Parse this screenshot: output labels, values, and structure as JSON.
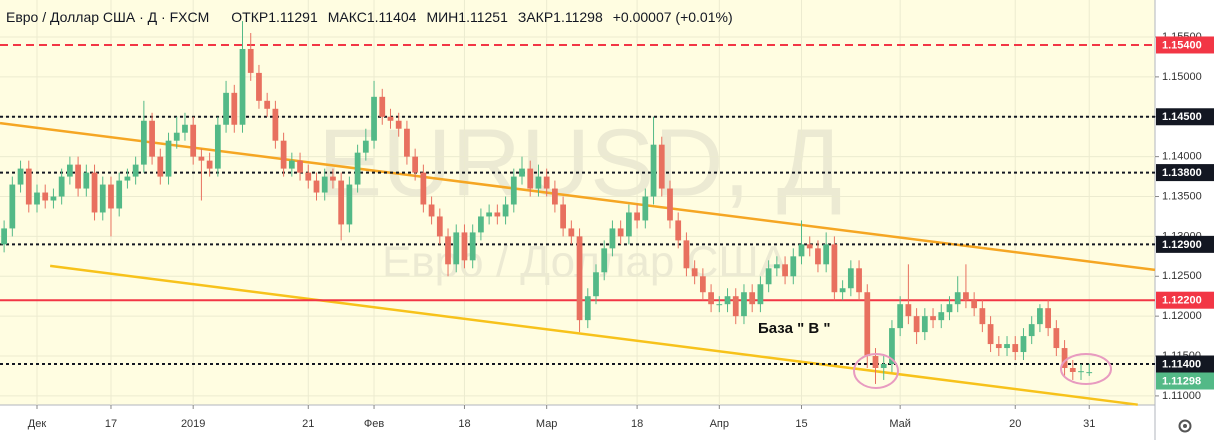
{
  "chart_data": {
    "type": "candlestick",
    "title": "Евро / Доллар США · Д · FXCM",
    "legend": [
      {
        "label": "ОТКР",
        "value": 1.11291
      },
      {
        "label": "МАКС",
        "value": 1.11404
      },
      {
        "label": "МИН",
        "value": 1.11251
      },
      {
        "label": "ЗАКР",
        "value": 1.11298
      }
    ],
    "change": "+0.00007 (+0.01%)",
    "watermark": "EURUSD, Д",
    "watermark_subtitle": "Евро / Доллар США",
    "annotation": "База  \" В \"",
    "up_color": "#53b987",
    "down_color": "#e8705f",
    "open": [
      1.129,
      1.131,
      1.1365,
      1.1385,
      1.134,
      1.1355,
      1.1345,
      1.135,
      1.1375,
      1.139,
      1.136,
      1.138,
      1.133,
      1.1365,
      1.1335,
      1.137,
      1.1375,
      1.139,
      1.1445,
      1.14,
      1.1375,
      1.142,
      1.143,
      1.144,
      1.14,
      1.1395,
      1.1385,
      1.144,
      1.148,
      1.144,
      1.1535,
      1.1505,
      1.147,
      1.146,
      1.142,
      1.1385,
      1.1395,
      1.138,
      1.137,
      1.1355,
      1.1375,
      1.137,
      1.1315,
      1.1365,
      1.1405,
      1.142,
      1.1475,
      1.145,
      1.1445,
      1.1435,
      1.14,
      1.138,
      1.134,
      1.1325,
      1.13,
      1.1265,
      1.1305,
      1.127,
      1.1305,
      1.1325,
      1.133,
      1.1325,
      1.134,
      1.1375,
      1.1385,
      1.136,
      1.1375,
      1.136,
      1.134,
      1.131,
      1.13,
      1.1195,
      1.1225,
      1.1255,
      1.1285,
      1.131,
      1.13,
      1.133,
      1.132,
      1.135,
      1.1415,
      1.136,
      1.132,
      1.1295,
      1.126,
      1.125,
      1.123,
      1.1215,
      1.1215,
      1.1225,
      1.12,
      1.123,
      1.1215,
      1.124,
      1.126,
      1.1265,
      1.125,
      1.1275,
      1.129,
      1.1285,
      1.1265,
      1.129,
      1.123,
      1.1235,
      1.126,
      1.123,
      1.115,
      1.1135,
      1.114,
      1.1185,
      1.1215,
      1.12,
      1.118,
      1.12,
      1.1195,
      1.1205,
      1.1215,
      1.123,
      1.122,
      1.121,
      1.119,
      1.1165,
      1.116,
      1.1165,
      1.1155,
      1.1175,
      1.119,
      1.121,
      1.1185,
      1.116,
      1.1135,
      1.113,
      1.11291
    ],
    "high": [
      1.132,
      1.1375,
      1.1395,
      1.1395,
      1.1365,
      1.1365,
      1.136,
      1.1385,
      1.14,
      1.14,
      1.139,
      1.139,
      1.1375,
      1.1375,
      1.138,
      1.1385,
      1.14,
      1.147,
      1.1455,
      1.141,
      1.143,
      1.145,
      1.1455,
      1.145,
      1.141,
      1.1405,
      1.145,
      1.1495,
      1.149,
      1.157,
      1.1555,
      1.1515,
      1.148,
      1.147,
      1.143,
      1.1405,
      1.1405,
      1.139,
      1.138,
      1.1385,
      1.1385,
      1.138,
      1.1375,
      1.1415,
      1.1435,
      1.1495,
      1.1485,
      1.146,
      1.1455,
      1.1445,
      1.141,
      1.139,
      1.135,
      1.1335,
      1.131,
      1.1315,
      1.1315,
      1.1315,
      1.1335,
      1.134,
      1.134,
      1.135,
      1.1385,
      1.14,
      1.1395,
      1.139,
      1.1385,
      1.137,
      1.135,
      1.132,
      1.131,
      1.1235,
      1.1265,
      1.1295,
      1.132,
      1.132,
      1.134,
      1.134,
      1.136,
      1.145,
      1.1425,
      1.137,
      1.133,
      1.1305,
      1.127,
      1.126,
      1.124,
      1.1225,
      1.1235,
      1.1235,
      1.124,
      1.124,
      1.125,
      1.127,
      1.1275,
      1.1275,
      1.1285,
      1.132,
      1.13,
      1.1295,
      1.1305,
      1.13,
      1.1245,
      1.127,
      1.127,
      1.124,
      1.116,
      1.115,
      1.1195,
      1.1225,
      1.1265,
      1.121,
      1.121,
      1.121,
      1.1215,
      1.1225,
      1.125,
      1.1265,
      1.123,
      1.122,
      1.12,
      1.1175,
      1.1175,
      1.1175,
      1.1185,
      1.12,
      1.1215,
      1.122,
      1.1195,
      1.117,
      1.1145,
      1.114,
      1.11404
    ],
    "low": [
      1.128,
      1.13,
      1.1355,
      1.133,
      1.133,
      1.1335,
      1.1335,
      1.134,
      1.1365,
      1.135,
      1.135,
      1.132,
      1.132,
      1.13,
      1.1325,
      1.136,
      1.1365,
      1.138,
      1.139,
      1.1365,
      1.1365,
      1.141,
      1.142,
      1.139,
      1.1345,
      1.1375,
      1.1375,
      1.143,
      1.143,
      1.143,
      1.1495,
      1.146,
      1.145,
      1.141,
      1.1375,
      1.1375,
      1.137,
      1.136,
      1.1345,
      1.1345,
      1.136,
      1.1295,
      1.1305,
      1.1355,
      1.1395,
      1.141,
      1.144,
      1.1435,
      1.1425,
      1.139,
      1.137,
      1.133,
      1.1315,
      1.129,
      1.125,
      1.1255,
      1.126,
      1.126,
      1.1295,
      1.1315,
      1.1315,
      1.1315,
      1.133,
      1.1365,
      1.135,
      1.135,
      1.135,
      1.133,
      1.13,
      1.129,
      1.118,
      1.1185,
      1.1215,
      1.1245,
      1.1275,
      1.129,
      1.129,
      1.131,
      1.131,
      1.134,
      1.135,
      1.131,
      1.1285,
      1.125,
      1.124,
      1.122,
      1.1205,
      1.1205,
      1.1205,
      1.119,
      1.119,
      1.1205,
      1.1205,
      1.123,
      1.125,
      1.124,
      1.124,
      1.1265,
      1.1275,
      1.1255,
      1.1255,
      1.122,
      1.122,
      1.1225,
      1.122,
      1.1135,
      1.1115,
      1.112,
      1.113,
      1.1175,
      1.119,
      1.1165,
      1.117,
      1.1185,
      1.1185,
      1.1195,
      1.1205,
      1.121,
      1.12,
      1.118,
      1.1155,
      1.115,
      1.115,
      1.1145,
      1.1145,
      1.1165,
      1.118,
      1.1175,
      1.115,
      1.1125,
      1.112,
      1.112,
      1.11251
    ],
    "close": [
      1.131,
      1.1365,
      1.1385,
      1.134,
      1.1355,
      1.1345,
      1.135,
      1.1375,
      1.139,
      1.136,
      1.138,
      1.133,
      1.1365,
      1.1335,
      1.137,
      1.1375,
      1.139,
      1.1445,
      1.14,
      1.1375,
      1.142,
      1.143,
      1.144,
      1.14,
      1.1395,
      1.1385,
      1.144,
      1.148,
      1.144,
      1.1535,
      1.1505,
      1.147,
      1.146,
      1.142,
      1.1385,
      1.1395,
      1.138,
      1.137,
      1.1355,
      1.1375,
      1.137,
      1.1315,
      1.1365,
      1.1405,
      1.142,
      1.1475,
      1.145,
      1.1445,
      1.1435,
      1.14,
      1.138,
      1.134,
      1.1325,
      1.13,
      1.1265,
      1.1305,
      1.127,
      1.1305,
      1.1325,
      1.133,
      1.1325,
      1.134,
      1.1375,
      1.1385,
      1.136,
      1.1375,
      1.136,
      1.134,
      1.131,
      1.13,
      1.1195,
      1.1225,
      1.1255,
      1.1285,
      1.131,
      1.13,
      1.133,
      1.132,
      1.135,
      1.1415,
      1.136,
      1.132,
      1.1295,
      1.126,
      1.125,
      1.123,
      1.1215,
      1.1215,
      1.1225,
      1.12,
      1.123,
      1.1215,
      1.124,
      1.126,
      1.1265,
      1.125,
      1.1275,
      1.129,
      1.1285,
      1.1265,
      1.129,
      1.123,
      1.1235,
      1.126,
      1.123,
      1.115,
      1.1135,
      1.114,
      1.1185,
      1.1215,
      1.12,
      1.118,
      1.12,
      1.1195,
      1.1205,
      1.1215,
      1.123,
      1.122,
      1.121,
      1.119,
      1.1165,
      1.116,
      1.1165,
      1.1155,
      1.1175,
      1.119,
      1.121,
      1.1185,
      1.116,
      1.1135,
      1.113,
      1.1131,
      1.11298
    ],
    "xlim": [
      -0.5,
      140
    ],
    "xticks": [
      {
        "value": 4,
        "label": "Дек"
      },
      {
        "value": 13,
        "label": "17"
      },
      {
        "value": 23,
        "label": "2019"
      },
      {
        "value": 37,
        "label": "21"
      },
      {
        "value": 45,
        "label": "Фев"
      },
      {
        "value": 56,
        "label": "18"
      },
      {
        "value": 66,
        "label": "Мар"
      },
      {
        "value": 77,
        "label": "18"
      },
      {
        "value": 87,
        "label": "Апр"
      },
      {
        "value": 97,
        "label": "15"
      },
      {
        "value": 109,
        "label": "Май"
      },
      {
        "value": 123,
        "label": "20"
      },
      {
        "value": 132,
        "label": "31"
      }
    ],
    "ylim": [
      1.10886,
      1.15964
    ],
    "yticks": [
      {
        "value": 1.155,
        "label": "1.15500"
      },
      {
        "value": 1.15,
        "label": "1.15000"
      },
      {
        "value": 1.145,
        "label": "1.14500"
      },
      {
        "value": 1.14,
        "label": "1.14000"
      },
      {
        "value": 1.135,
        "label": "1.13500"
      },
      {
        "value": 1.13,
        "label": "1.13000"
      },
      {
        "value": 1.125,
        "label": "1.12500"
      },
      {
        "value": 1.12,
        "label": "1.12000"
      },
      {
        "value": 1.115,
        "label": "1.11500"
      },
      {
        "value": 1.11,
        "label": "1.11000"
      }
    ],
    "grid": true,
    "levels": [
      {
        "value": 1.154,
        "label": "1.15400",
        "color": "#f23645",
        "style": "dashed"
      },
      {
        "value": 1.145,
        "label": "1.14500",
        "color": "#131722",
        "style": "dotted"
      },
      {
        "value": 1.138,
        "label": "1.13800",
        "color": "#131722",
        "style": "dotted"
      },
      {
        "value": 1.129,
        "label": "1.12900",
        "color": "#131722",
        "style": "dotted"
      },
      {
        "value": 1.122,
        "label": "1.12200",
        "color": "#f23645",
        "style": "solid"
      },
      {
        "value": 1.114,
        "label": "1.11400",
        "color": "#131722",
        "style": "dotted"
      }
    ],
    "last_price": {
      "value": 1.11298,
      "label": "1.11298",
      "color": "#53b987"
    },
    "trendlines": [
      {
        "color": "#f5a623",
        "points": [
          [
            -0.5,
            1.1442
          ],
          [
            140,
            1.1258
          ]
        ]
      },
      {
        "color": "#f7c21a",
        "points": [
          [
            5.6,
            1.1263
          ],
          [
            137.9,
            1.1089
          ]
        ]
      }
    ]
  }
}
